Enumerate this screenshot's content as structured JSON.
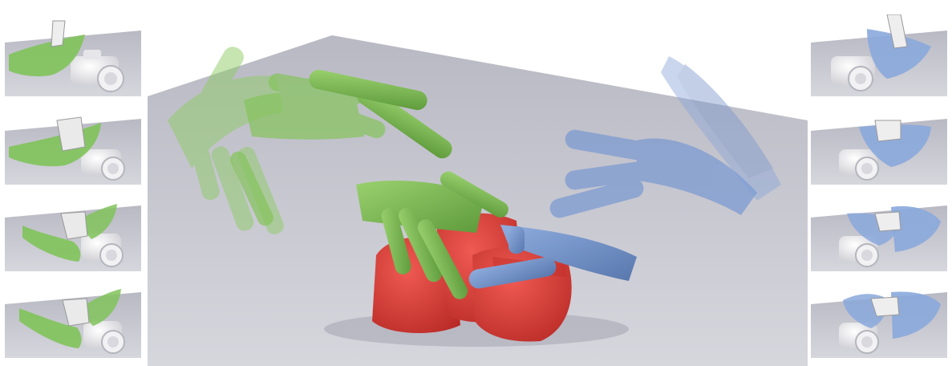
{
  "figure": {
    "main_scene": {
      "object": "camera",
      "object_color": "#df3a36",
      "ground_color": "#c6c6cf",
      "hands": [
        {
          "name": "green-hand",
          "color": "#7fbe55"
        },
        {
          "name": "blue-hand",
          "color": "#6f8fc6"
        }
      ]
    },
    "left_column": {
      "hand_color": "#7fbe55",
      "object": "camera",
      "steps": [
        "step-1",
        "step-2",
        "step-3",
        "step-4"
      ]
    },
    "right_column": {
      "hand_color": "#8aa8dc",
      "object": "camera",
      "steps": [
        "step-1",
        "step-2",
        "step-3",
        "step-4"
      ]
    }
  }
}
